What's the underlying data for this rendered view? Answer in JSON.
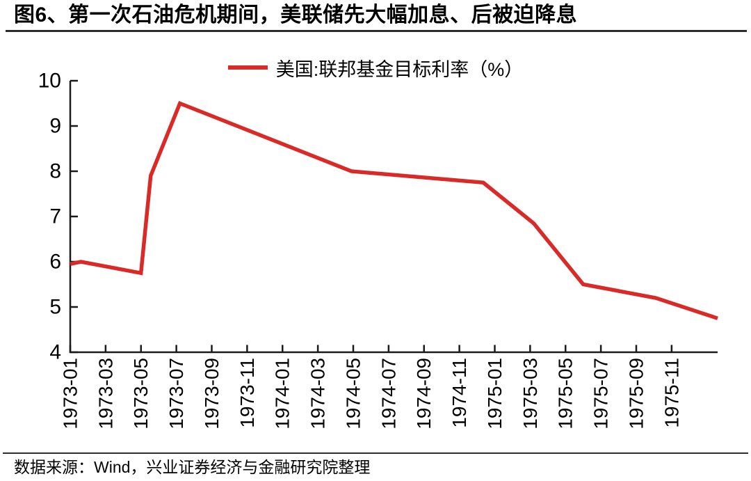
{
  "title": "图6、第一次石油危机期间，美联储先大幅加息、后被迫降息",
  "source": "数据来源：Wind，兴业证券经济与金融研究院整理",
  "chart_data": {
    "type": "line",
    "title": "",
    "xlabel": "",
    "ylabel": "",
    "legend": [
      "美国:联邦基金目标利率（%）"
    ],
    "legend_position": "top-center",
    "grid": false,
    "line_color": "#da2a28",
    "axis_color": "#1a1a1a",
    "ylim": [
      4,
      10
    ],
    "y_ticks": [
      4,
      5,
      6,
      7,
      8,
      9,
      10
    ],
    "x_tick_step_months": 2,
    "x_domain_months": [
      0,
      36.6
    ],
    "x_tick_labels": [
      "1973-01",
      "1973-03",
      "1973-05",
      "1973-07",
      "1973-09",
      "1973-11",
      "1974-01",
      "1974-03",
      "1974-05",
      "1974-07",
      "1974-09",
      "1974-11",
      "1975-01",
      "1975-03",
      "1975-05",
      "1975-07",
      "1975-09",
      "1975-11"
    ],
    "series": [
      {
        "name": "美国:联邦基金目标利率（%）",
        "points": [
          {
            "x_month": 0,
            "date": "1973-01",
            "value": 5.95
          },
          {
            "x_month": 0.6,
            "date": "1973-02",
            "value": 6.0
          },
          {
            "x_month": 4,
            "date": "1973-05",
            "value": 5.75
          },
          {
            "x_month": 4.55,
            "date": "1973-05",
            "value": 7.9
          },
          {
            "x_month": 6.2,
            "date": "1973-07",
            "value": 9.5
          },
          {
            "x_month": 15.9,
            "date": "1974-05",
            "value": 8.0
          },
          {
            "x_month": 23.35,
            "date": "1974-12",
            "value": 7.75
          },
          {
            "x_month": 26.2,
            "date": "1975-03",
            "value": 6.85
          },
          {
            "x_month": 29,
            "date": "1975-06",
            "value": 5.5
          },
          {
            "x_month": 33.1,
            "date": "1975-10",
            "value": 5.2
          },
          {
            "x_month": 36.6,
            "date": "1976-01",
            "value": 4.75
          }
        ]
      }
    ]
  }
}
